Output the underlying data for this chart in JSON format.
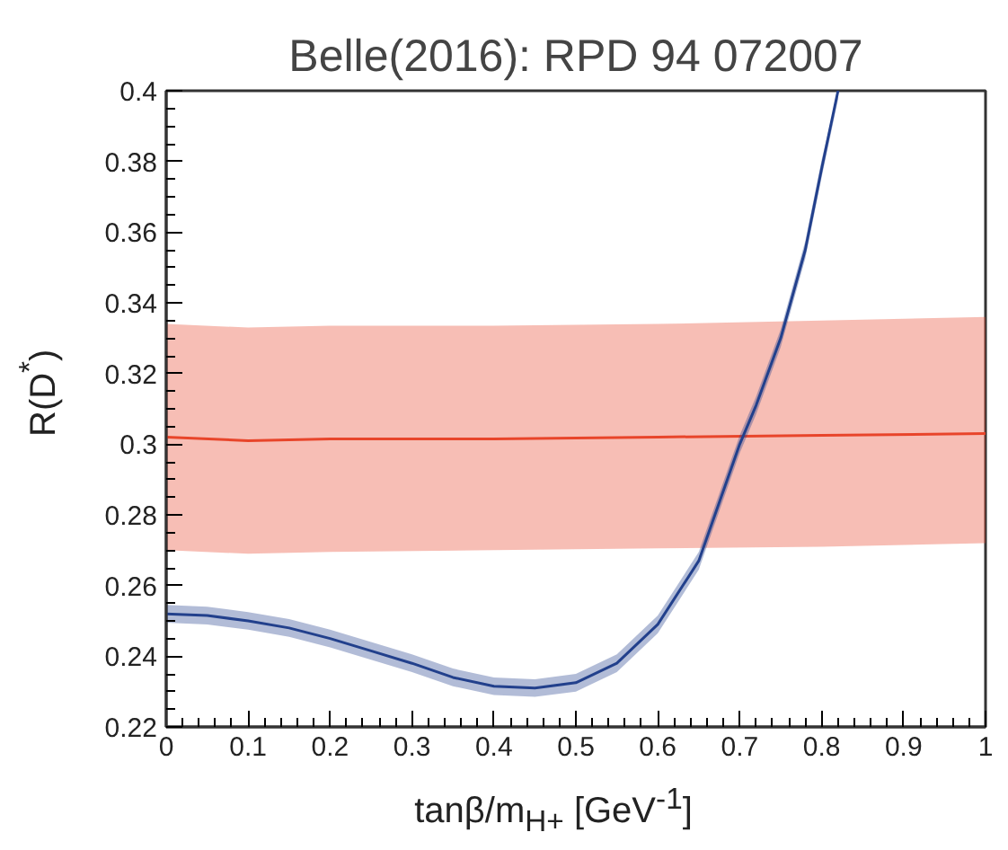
{
  "chart_data": {
    "type": "line",
    "title": "Belle(2016): RPD 94 072007",
    "xlabel": "tanβ/m$_{H+}$ [GeV$^{-1}$]",
    "ylabel": "R(D$^{*}$)",
    "xlim": [
      0,
      1
    ],
    "ylim": [
      0.22,
      0.4
    ],
    "xticks": [
      0,
      0.1,
      0.2,
      0.3,
      0.4,
      0.5,
      0.6,
      0.7,
      0.8,
      0.9,
      1
    ],
    "yticks": [
      0.22,
      0.24,
      0.26,
      0.28,
      0.3,
      0.32,
      0.34,
      0.36,
      0.38,
      0.4
    ],
    "grid": false,
    "marker": "none",
    "line_style": "solid",
    "series": [
      {
        "color": "#e8452a",
        "x": [
          0,
          0.1,
          0.2,
          0.4,
          0.6,
          0.8,
          1
        ],
        "values": [
          0.302,
          0.301,
          0.3015,
          0.3015,
          0.302,
          0.3025,
          0.303
        ],
        "lower": [
          0.27,
          0.269,
          0.2695,
          0.27,
          0.2705,
          0.271,
          0.272
        ],
        "upper": [
          0.334,
          0.333,
          0.3335,
          0.3335,
          0.334,
          0.335,
          0.336
        ]
      },
      {
        "color": "#22408c",
        "x": [
          0,
          0.05,
          0.1,
          0.15,
          0.2,
          0.25,
          0.3,
          0.35,
          0.4,
          0.45,
          0.5,
          0.55,
          0.6,
          0.65,
          0.7,
          0.72,
          0.75,
          0.78,
          0.8,
          0.82
        ],
        "values": [
          0.252,
          0.2515,
          0.25,
          0.248,
          0.245,
          0.2415,
          0.238,
          0.234,
          0.2315,
          0.231,
          0.2325,
          0.238,
          0.249,
          0.267,
          0.3,
          0.311,
          0.33,
          0.355,
          0.378,
          0.4
        ],
        "lower": [
          0.2495,
          0.249,
          0.2475,
          0.2455,
          0.2425,
          0.239,
          0.2355,
          0.2315,
          0.229,
          0.2285,
          0.23,
          0.2355,
          0.2465,
          0.2645,
          0.2975,
          0.3085,
          0.3275,
          0.3525,
          0.3755,
          0.3975
        ],
        "upper": [
          0.2545,
          0.254,
          0.2525,
          0.2505,
          0.2475,
          0.244,
          0.2405,
          0.2365,
          0.234,
          0.2335,
          0.235,
          0.2405,
          0.2515,
          0.2695,
          0.3025,
          0.3135,
          0.3325,
          0.3575,
          0.3805,
          0.4
        ]
      }
    ]
  }
}
